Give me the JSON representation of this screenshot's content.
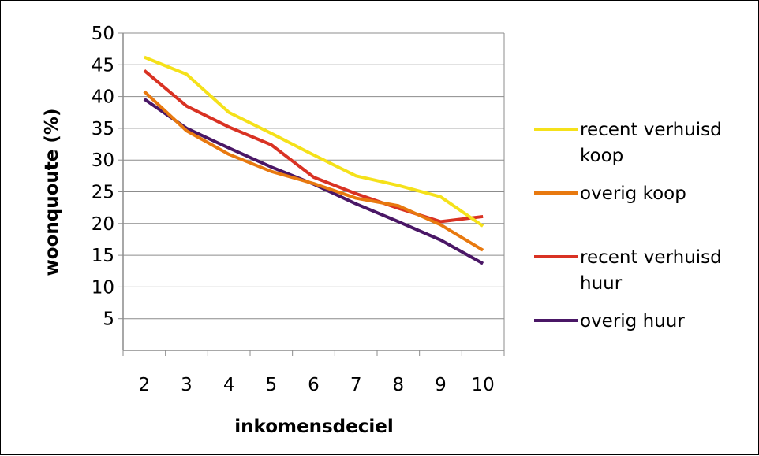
{
  "chart_data": {
    "type": "line",
    "xlabel": "inkomensdeciel",
    "ylabel": "woonquoute (%)",
    "categories": [
      "2",
      "3",
      "4",
      "5",
      "6",
      "7",
      "8",
      "9",
      "10"
    ],
    "ylim": [
      0,
      50
    ],
    "yticks": [
      5,
      10,
      15,
      20,
      25,
      30,
      35,
      40,
      45,
      50
    ],
    "grid": "horizontal",
    "legend_position": "right",
    "series": [
      {
        "name_lines": [
          "recent verhuisd",
          "koop"
        ],
        "color": "#F5E11A",
        "values": [
          46.2,
          43.5,
          37.5,
          34.2,
          30.8,
          27.5,
          26.0,
          24.2,
          19.6
        ]
      },
      {
        "name_lines": [
          "overig koop"
        ],
        "color": "#E8790F",
        "values": [
          40.8,
          34.6,
          30.9,
          28.2,
          26.3,
          24.0,
          22.8,
          19.8,
          15.8
        ]
      },
      {
        "name_lines": [
          "recent verhuisd",
          "huur"
        ],
        "color": "#D93223",
        "values": [
          44.1,
          38.5,
          35.2,
          32.4,
          27.3,
          24.7,
          22.4,
          20.3,
          21.1
        ]
      },
      {
        "name_lines": [
          "overig huur"
        ],
        "color": "#4A1766",
        "values": [
          39.6,
          35.0,
          31.9,
          28.9,
          26.2,
          23.1,
          20.3,
          17.4,
          13.7
        ]
      }
    ]
  }
}
